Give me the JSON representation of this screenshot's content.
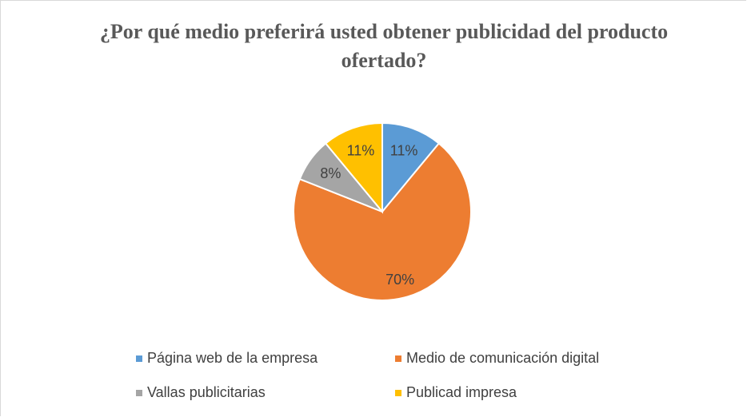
{
  "chart_data": {
    "type": "pie",
    "title": "¿Por qué medio preferirá usted obtener publicidad del producto ofertado?",
    "categories": [
      "Página web de la empresa",
      "Medio de comunicación digital",
      "Vallas publicitarias",
      "Publicad impresa"
    ],
    "values": [
      11,
      70,
      8,
      11
    ],
    "value_labels": [
      "11%",
      "70%",
      "8%",
      "11%"
    ],
    "colors": [
      "#5b9bd5",
      "#ed7d31",
      "#a5a5a5",
      "#ffc000"
    ],
    "legend": "bottom"
  }
}
